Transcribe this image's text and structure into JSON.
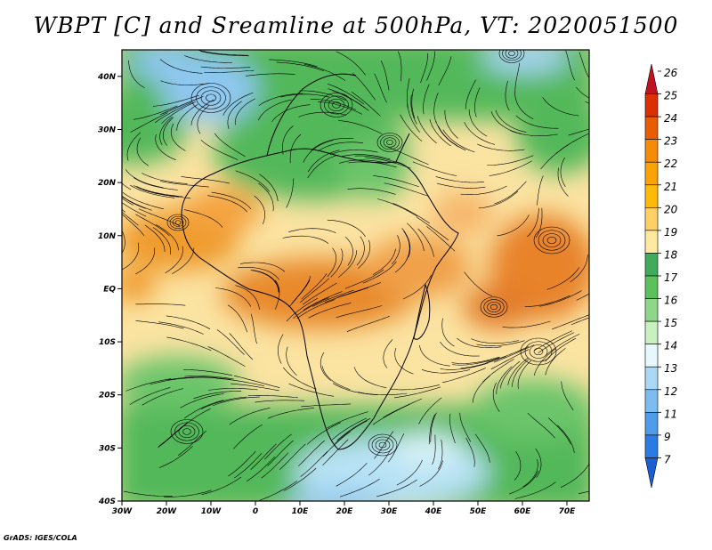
{
  "title": "WBPT [C] and Sreamline at 500hPa, VT: 2020051500",
  "credit": "GrADS: IGES/COLA",
  "map": {
    "lon_ticks": [
      "30W",
      "20W",
      "10W",
      "0",
      "10E",
      "20E",
      "30E",
      "40E",
      "50E",
      "60E",
      "70E"
    ],
    "lat_ticks": [
      "40N",
      "30N",
      "20N",
      "10N",
      "EQ",
      "10S",
      "20S",
      "30S",
      "40S"
    ],
    "lon_range": [
      -30,
      75
    ],
    "lat_range": [
      -40,
      45
    ],
    "variable": "Wet-bulb potential temperature with streamlines"
  },
  "colorbar": {
    "labels": [
      "26",
      "25",
      "24",
      "23",
      "22",
      "21",
      "20",
      "19",
      "18",
      "17",
      "16",
      "15",
      "14",
      "13",
      "12",
      "11",
      "9",
      "7"
    ],
    "colors": [
      "#c1121f",
      "#dc2f02",
      "#e85d04",
      "#f48c06",
      "#faa307",
      "#ffba08",
      "#ffd166",
      "#fde9a0",
      "#41ab5d",
      "#5cc05c",
      "#8fd68a",
      "#c9f0c0",
      "#e6f8fb",
      "#aad8f5",
      "#7dbcf0",
      "#4f9cea",
      "#2c7be5",
      "#1a5fd1"
    ]
  }
}
